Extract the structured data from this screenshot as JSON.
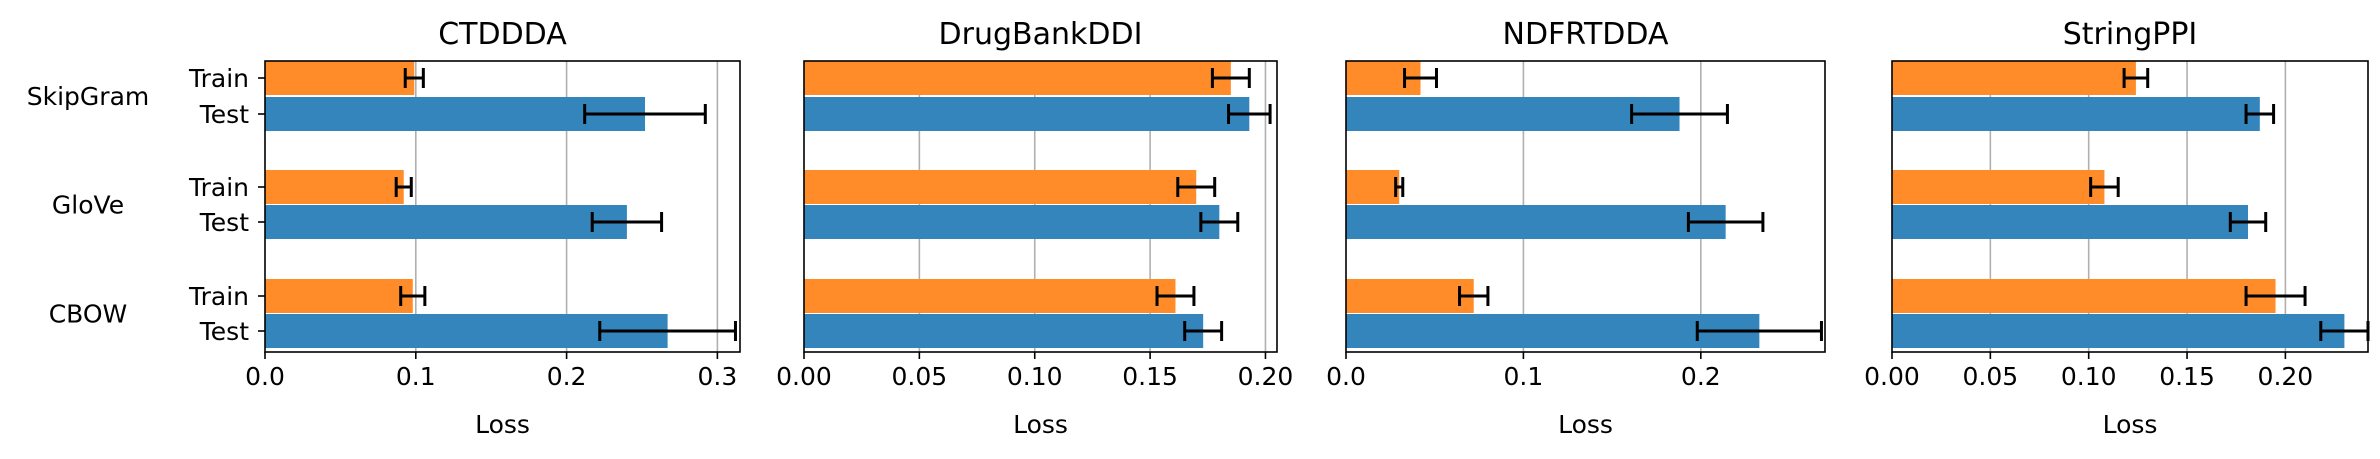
{
  "chart_data": [
    {
      "type": "bar",
      "orientation": "horizontal",
      "title": "CTDDDA",
      "xlabel": "Loss",
      "xlim": [
        0,
        0.315
      ],
      "xticks": [
        "0.0",
        "0.1",
        "0.2",
        "0.3"
      ],
      "tick_values": [
        0,
        0.1,
        0.2,
        0.3
      ],
      "grid": "vertical",
      "groups": [
        {
          "group": "SkipGram",
          "bars": [
            {
              "label": "Train",
              "value": 0.099,
              "error": 0.006
            },
            {
              "label": "Test",
              "value": 0.252,
              "error": 0.04
            }
          ]
        },
        {
          "group": "GloVe",
          "bars": [
            {
              "label": "Train",
              "value": 0.092,
              "error": 0.005
            },
            {
              "label": "Test",
              "value": 0.24,
              "error": 0.023
            }
          ]
        },
        {
          "group": "CBOW",
          "bars": [
            {
              "label": "Train",
              "value": 0.098,
              "error": 0.008
            },
            {
              "label": "Test",
              "value": 0.267,
              "error": 0.045
            }
          ]
        }
      ]
    },
    {
      "type": "bar",
      "orientation": "horizontal",
      "title": "DrugBankDDI",
      "xlabel": "Loss",
      "xlim": [
        0,
        0.205
      ],
      "xticks": [
        "0.00",
        "0.05",
        "0.10",
        "0.15",
        "0.20"
      ],
      "tick_values": [
        0,
        0.05,
        0.1,
        0.15,
        0.2
      ],
      "grid": "vertical",
      "groups": [
        {
          "group": "SkipGram",
          "bars": [
            {
              "label": "Train",
              "value": 0.185,
              "error": 0.008
            },
            {
              "label": "Test",
              "value": 0.193,
              "error": 0.009
            }
          ]
        },
        {
          "group": "GloVe",
          "bars": [
            {
              "label": "Train",
              "value": 0.17,
              "error": 0.008
            },
            {
              "label": "Test",
              "value": 0.18,
              "error": 0.008
            }
          ]
        },
        {
          "group": "CBOW",
          "bars": [
            {
              "label": "Train",
              "value": 0.161,
              "error": 0.008
            },
            {
              "label": "Test",
              "value": 0.173,
              "error": 0.008
            }
          ]
        }
      ]
    },
    {
      "type": "bar",
      "orientation": "horizontal",
      "title": "NDFRTDDA",
      "xlabel": "Loss",
      "xlim": [
        0,
        0.27
      ],
      "xticks": [
        "0.0",
        "0.1",
        "0.2"
      ],
      "tick_values": [
        0,
        0.1,
        0.2
      ],
      "grid": "vertical",
      "groups": [
        {
          "group": "SkipGram",
          "bars": [
            {
              "label": "Train",
              "value": 0.042,
              "error": 0.009
            },
            {
              "label": "Test",
              "value": 0.188,
              "error": 0.027
            }
          ]
        },
        {
          "group": "GloVe",
          "bars": [
            {
              "label": "Train",
              "value": 0.03,
              "error": 0.002
            },
            {
              "label": "Test",
              "value": 0.214,
              "error": 0.021
            }
          ]
        },
        {
          "group": "CBOW",
          "bars": [
            {
              "label": "Train",
              "value": 0.072,
              "error": 0.008
            },
            {
              "label": "Test",
              "value": 0.233,
              "error": 0.035
            }
          ]
        }
      ]
    },
    {
      "type": "bar",
      "orientation": "horizontal",
      "title": "StringPPI",
      "xlabel": "Loss",
      "xlim": [
        0,
        0.242
      ],
      "xticks": [
        "0.00",
        "0.05",
        "0.10",
        "0.15",
        "0.20"
      ],
      "tick_values": [
        0,
        0.05,
        0.1,
        0.15,
        0.2
      ],
      "grid": "vertical",
      "groups": [
        {
          "group": "SkipGram",
          "bars": [
            {
              "label": "Train",
              "value": 0.124,
              "error": 0.006
            },
            {
              "label": "Test",
              "value": 0.187,
              "error": 0.007
            }
          ]
        },
        {
          "group": "GloVe",
          "bars": [
            {
              "label": "Train",
              "value": 0.108,
              "error": 0.007
            },
            {
              "label": "Test",
              "value": 0.181,
              "error": 0.009
            }
          ]
        },
        {
          "group": "CBOW",
          "bars": [
            {
              "label": "Train",
              "value": 0.195,
              "error": 0.015
            },
            {
              "label": "Test",
              "value": 0.23,
              "error": 0.012
            }
          ]
        }
      ]
    }
  ],
  "colors": {
    "train": "#ff8c28",
    "test": "#3585bd",
    "grid": "#b0b0b0",
    "axis": "#000000",
    "errorbar": "#000000"
  }
}
